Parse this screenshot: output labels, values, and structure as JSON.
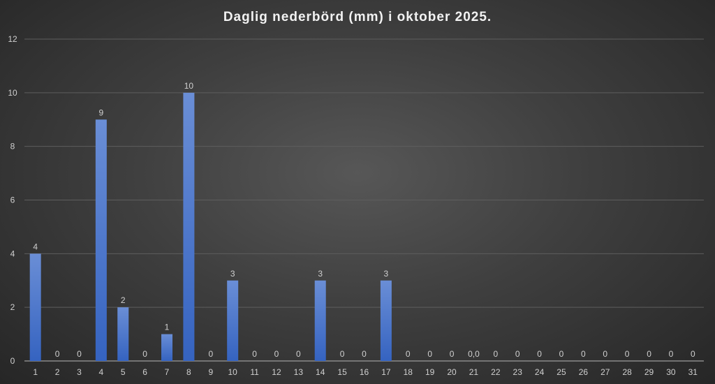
{
  "chart_data": {
    "type": "bar",
    "title": "Daglig nederbörd (mm) i oktober 2025.",
    "categories": [
      "1",
      "2",
      "3",
      "4",
      "5",
      "6",
      "7",
      "8",
      "9",
      "10",
      "11",
      "12",
      "13",
      "14",
      "15",
      "16",
      "17",
      "18",
      "19",
      "20",
      "21",
      "22",
      "23",
      "24",
      "25",
      "26",
      "27",
      "28",
      "29",
      "30",
      "31"
    ],
    "values": [
      4,
      0,
      0,
      9,
      2,
      0,
      1,
      10,
      0,
      3,
      0,
      0,
      0,
      3,
      0,
      0,
      3,
      0,
      0,
      0,
      0,
      0,
      0,
      0,
      0,
      0,
      0,
      0,
      0,
      0,
      0
    ],
    "data_labels": [
      "4",
      "0",
      "0",
      "9",
      "2",
      "0",
      "1",
      "10",
      "0",
      "3",
      "0",
      "0",
      "0",
      "3",
      "0",
      "0",
      "3",
      "0",
      "0",
      "0",
      "0,0",
      "0",
      "0",
      "0",
      "0",
      "0",
      "0",
      "0",
      "0",
      "0",
      "0"
    ],
    "yticks": [
      "0",
      "2",
      "4",
      "6",
      "8",
      "10",
      "12"
    ],
    "ylim": [
      0,
      12
    ],
    "grid": true,
    "bar_color": "#4472c4"
  }
}
